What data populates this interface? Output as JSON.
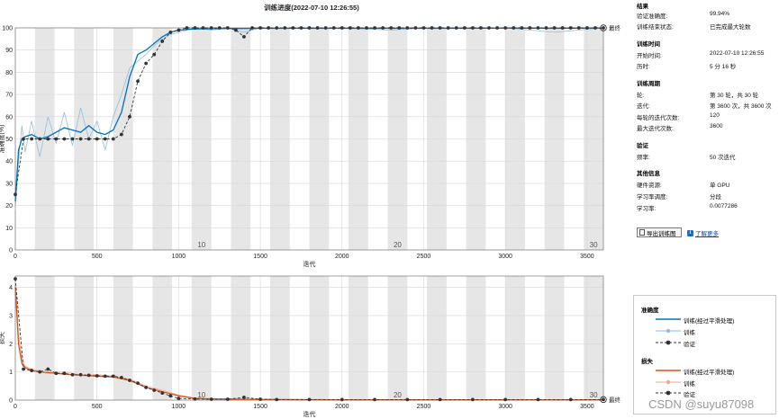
{
  "chart_data": [
    {
      "type": "line",
      "title": "训练进度(2022-07-10 12:26:55)",
      "xlabel": "迭代",
      "ylabel": "准确度(%)",
      "xlim": [
        0,
        3600
      ],
      "ylim": [
        0,
        100
      ],
      "xticks": [
        0,
        500,
        1000,
        1500,
        2000,
        2500,
        3000,
        3500
      ],
      "yticks": [
        0,
        10,
        20,
        30,
        40,
        50,
        60,
        70,
        80,
        90,
        100
      ],
      "epoch_labels": [
        "10",
        "20",
        "30"
      ],
      "end_label": "最终",
      "grid": true,
      "series": [
        {
          "name": "训练(经过平滑处理)",
          "color": "#0072bd",
          "x": [
            0,
            20,
            40,
            60,
            100,
            150,
            200,
            250,
            300,
            350,
            400,
            450,
            500,
            550,
            600,
            650,
            700,
            750,
            800,
            850,
            900,
            950,
            1000,
            1100,
            1200,
            1300,
            1400,
            1500,
            1700,
            2000,
            2300,
            2500,
            2700,
            3000,
            3300,
            3600
          ],
          "values": [
            22,
            45,
            50,
            51,
            52,
            50,
            51,
            53,
            55,
            54,
            53,
            56,
            53,
            52,
            54,
            62,
            78,
            88,
            90,
            93,
            96,
            98,
            99,
            99.5,
            99.6,
            99.7,
            99.7,
            99.8,
            99.8,
            99.8,
            99.8,
            99.8,
            99.8,
            99.9,
            99.8,
            99.9
          ]
        },
        {
          "name": "训练",
          "color": "#8ebfe0",
          "x": [
            0,
            20,
            40,
            60,
            100,
            150,
            200,
            250,
            300,
            350,
            400,
            450,
            500,
            550,
            600,
            650,
            700,
            750,
            800,
            850,
            900,
            950,
            1000,
            1100,
            1200,
            1300,
            1400,
            1500,
            1700,
            2000,
            2300,
            2500,
            2700,
            3000,
            3300,
            3600
          ],
          "values": [
            18,
            40,
            56,
            44,
            58,
            42,
            60,
            48,
            62,
            47,
            64,
            50,
            58,
            45,
            60,
            70,
            82,
            85,
            88,
            92,
            95,
            97,
            98,
            100,
            99,
            100,
            98,
            100,
            100,
            100,
            99,
            100,
            100,
            100,
            98,
            100
          ]
        },
        {
          "name": "验证",
          "color": "#333333",
          "x": [
            0,
            50,
            100,
            150,
            200,
            250,
            300,
            350,
            400,
            450,
            500,
            550,
            600,
            650,
            700,
            750,
            800,
            850,
            900,
            950,
            1000,
            1050,
            1100,
            1150,
            1200,
            1250,
            1300,
            1350,
            1400,
            1450,
            1500,
            1550,
            1600,
            1650,
            1700,
            1750,
            1800,
            1850,
            1900,
            1950,
            2000,
            2050,
            2100,
            2150,
            2200,
            2250,
            2300,
            2350,
            2400,
            2450,
            2500,
            2550,
            2600,
            2650,
            2700,
            2750,
            2800,
            2850,
            2900,
            2950,
            3000,
            3050,
            3100,
            3150,
            3200,
            3250,
            3300,
            3350,
            3400,
            3450,
            3500,
            3550,
            3600
          ],
          "values": [
            25,
            50,
            50,
            50,
            50,
            50,
            50,
            50,
            50,
            50,
            50,
            50,
            50,
            52,
            60,
            76,
            84,
            88,
            94,
            98,
            99,
            100,
            100,
            100,
            100,
            100,
            100,
            99,
            96,
            100,
            100,
            100,
            100,
            100,
            100,
            100,
            100,
            100,
            100,
            100,
            100,
            100,
            100,
            100,
            100,
            100,
            100,
            100,
            100,
            100,
            100,
            100,
            100,
            100,
            100,
            100,
            100,
            100,
            100,
            100,
            100,
            100,
            100,
            100,
            100,
            100,
            100,
            100,
            100,
            100,
            100,
            100,
            100
          ]
        }
      ]
    },
    {
      "type": "line",
      "xlabel": "迭代",
      "ylabel": "损失",
      "xlim": [
        0,
        3600
      ],
      "ylim": [
        0,
        4.4
      ],
      "xticks": [
        0,
        500,
        1000,
        1500,
        2000,
        2500,
        3000,
        3500
      ],
      "yticks": [
        0,
        1,
        2,
        3,
        4
      ],
      "epoch_labels": [
        "10",
        "20",
        "30"
      ],
      "end_label": "最终",
      "grid": true,
      "series": [
        {
          "name": "训练(经过平滑处理)",
          "color": "#d95319",
          "x": [
            0,
            20,
            40,
            60,
            100,
            150,
            200,
            300,
            400,
            500,
            600,
            700,
            800,
            900,
            1000,
            1100,
            1200,
            1400,
            1600,
            2000,
            2500,
            3000,
            3600
          ],
          "values": [
            4.0,
            2.0,
            1.3,
            1.15,
            1.05,
            1.0,
            0.98,
            0.92,
            0.88,
            0.85,
            0.82,
            0.7,
            0.45,
            0.3,
            0.15,
            0.06,
            0.04,
            0.03,
            0.02,
            0.01,
            0.01,
            0.01,
            0.01
          ]
        },
        {
          "name": "训练",
          "color": "#f0a890",
          "x": [
            0,
            20,
            40,
            60,
            100,
            150,
            200,
            300,
            400,
            500,
            600,
            700,
            800,
            900,
            1000,
            1100,
            1200,
            1400,
            1600,
            2000,
            2500,
            3000,
            3600
          ],
          "values": [
            4.3,
            2.3,
            1.5,
            1.2,
            1.1,
            1.05,
            0.95,
            1.0,
            0.9,
            0.9,
            0.85,
            0.75,
            0.5,
            0.35,
            0.18,
            0.08,
            0.05,
            0.04,
            0.03,
            0.02,
            0.02,
            0.02,
            0.02
          ]
        },
        {
          "name": "验证",
          "color": "#333333",
          "x": [
            0,
            50,
            100,
            150,
            200,
            250,
            300,
            350,
            400,
            450,
            500,
            550,
            600,
            650,
            700,
            750,
            800,
            850,
            900,
            950,
            1000,
            1100,
            1200,
            1300,
            1400,
            1500,
            1600,
            1800,
            2000,
            2200,
            2400,
            2600,
            2800,
            3000,
            3200,
            3400,
            3600
          ],
          "values": [
            4.3,
            1.1,
            1.05,
            1.0,
            1.1,
            0.95,
            0.95,
            0.9,
            0.9,
            0.88,
            0.86,
            0.85,
            0.85,
            0.8,
            0.7,
            0.6,
            0.45,
            0.35,
            0.25,
            0.15,
            0.06,
            0.04,
            0.03,
            0.03,
            0.1,
            0.03,
            0.02,
            0.02,
            0.02,
            0.02,
            0.02,
            0.02,
            0.02,
            0.02,
            0.02,
            0.02,
            0.02
          ]
        }
      ]
    }
  ],
  "side": {
    "results": {
      "title": "结果",
      "acc_label": "验证准确度:",
      "acc_value": "99.94%",
      "status_label": "训练结束状态:",
      "status_value": "已完成最大轮数"
    },
    "time": {
      "title": "训练时间",
      "start_label": "开始时间:",
      "start_value": "2022-07-10 12:26:55",
      "elapsed_label": "历时:",
      "elapsed_value": "5 分 16 秒"
    },
    "cycle": {
      "title": "训练周期",
      "epoch_label": "轮:",
      "epoch_value": "第 30 轮，共 30 轮",
      "iter_label": "迭代:",
      "iter_value": "第 3600 次，共 3600 次",
      "per_label": "每轮的迭代次数:",
      "per_value": "120",
      "max_label": "最大迭代次数:",
      "max_value": "3600"
    },
    "validation": {
      "title": "验证",
      "freq_label": "频率:",
      "freq_value": "50 次迭代"
    },
    "other": {
      "title": "其他信息",
      "hw_label": "硬件资源:",
      "hw_value": "单 GPU",
      "sched_label": "学习率调度:",
      "sched_value": "分段",
      "lr_label": "学习率:",
      "lr_value": "0.0077286"
    },
    "export_label": "导出训练图",
    "learn_label": "了解更多"
  },
  "legend": {
    "acc_title": "准确度",
    "acc_smooth": "训练(经过平滑处理)",
    "acc_train": "训练",
    "acc_val": "验证",
    "loss_title": "损失",
    "loss_smooth": "训练(经过平滑处理)",
    "loss_train": "训练",
    "loss_val": "验证",
    "acc_colors": [
      "#0072bd",
      "#8ebfe0",
      "#333333"
    ],
    "loss_colors": [
      "#d95319",
      "#f0a890",
      "#333333"
    ]
  },
  "watermark": "CSDN @suyu87098"
}
